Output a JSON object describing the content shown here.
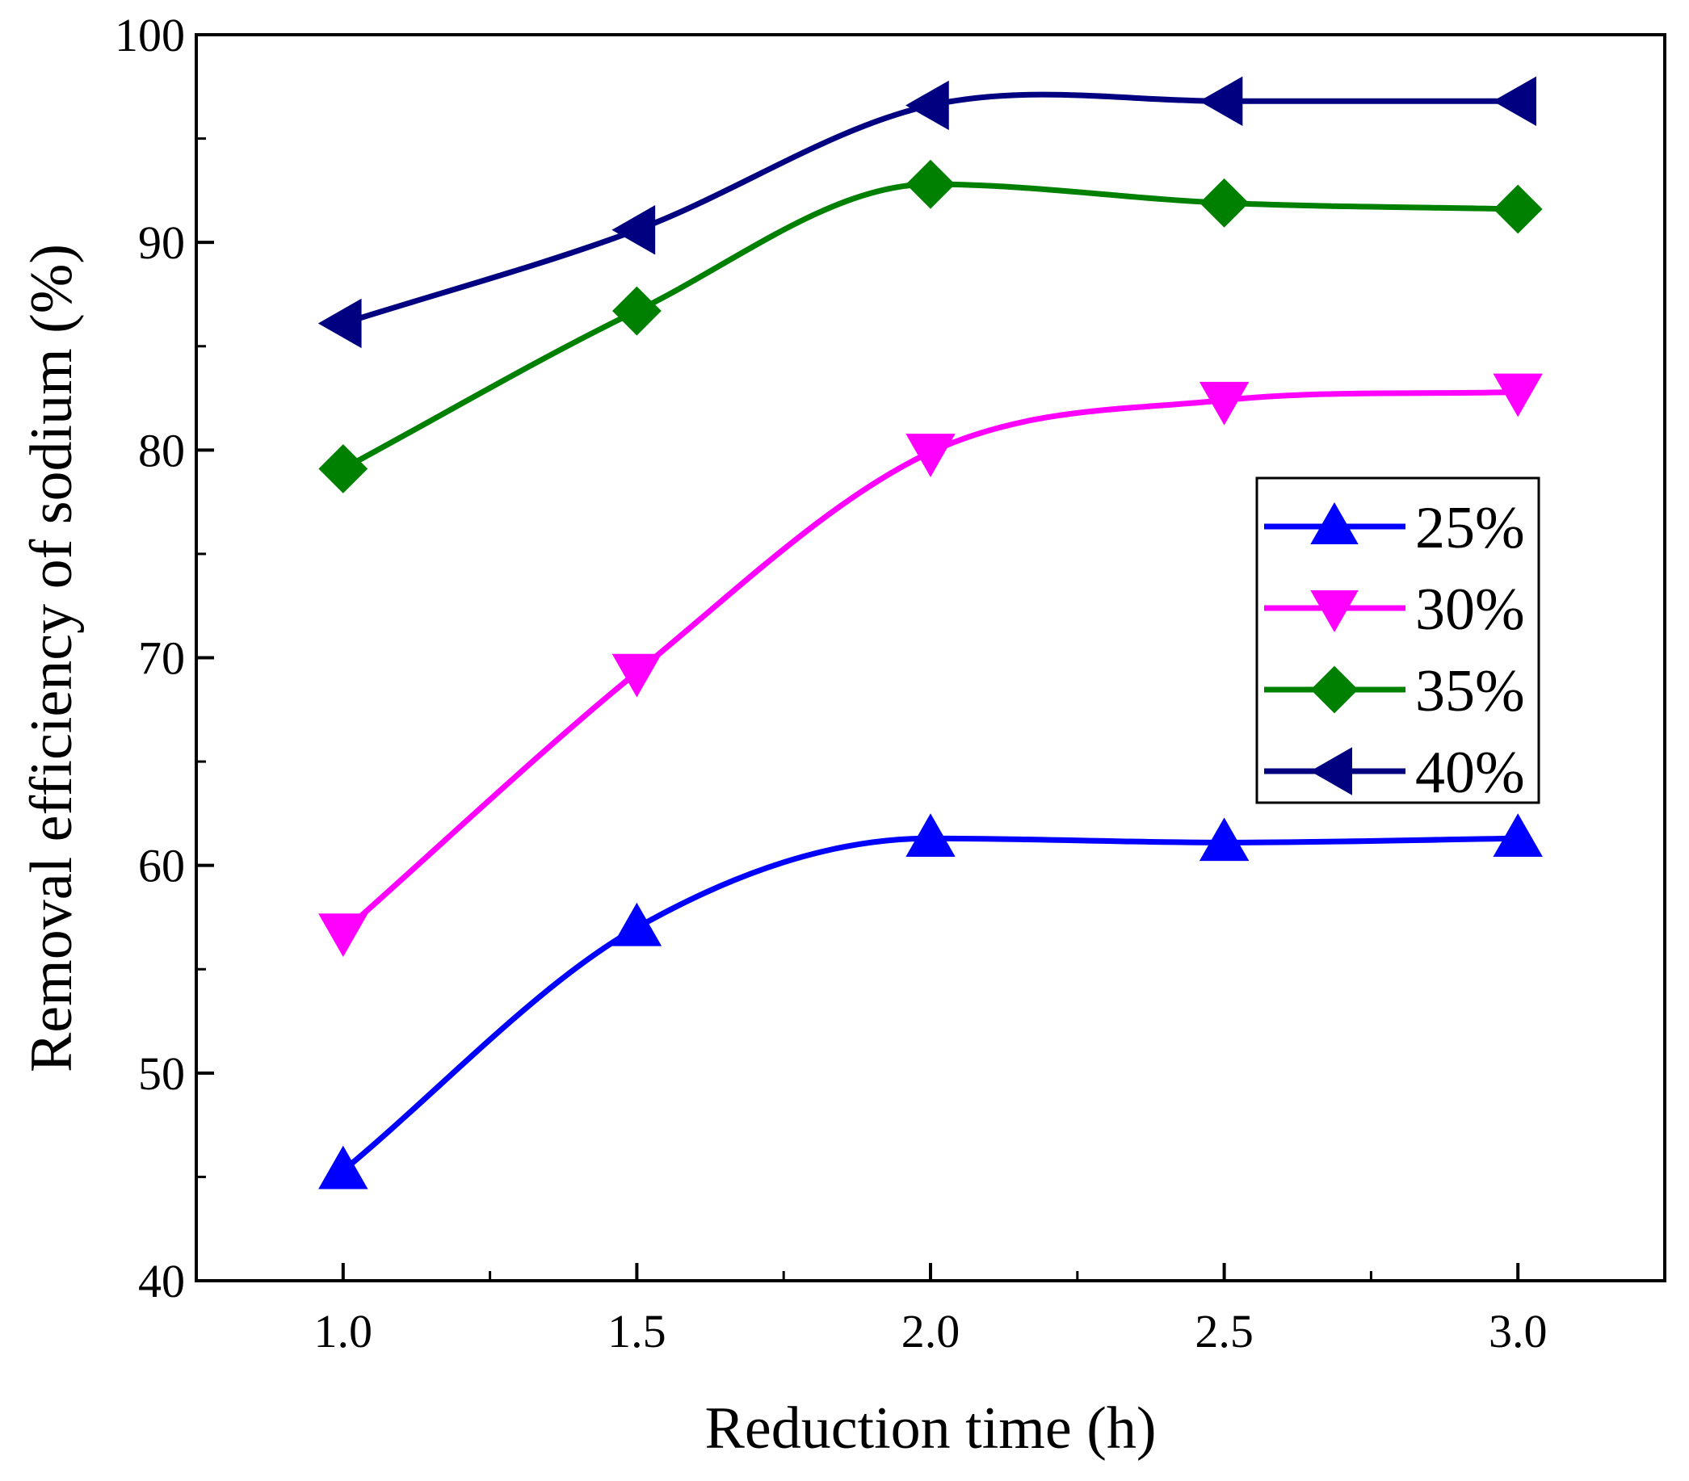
{
  "chart_data": {
    "type": "line",
    "xlabel": "Reduction time (h)",
    "ylabel": "Removal efficiency of sodium (%)",
    "xlim": [
      0.75,
      3.25
    ],
    "ylim": [
      40,
      100
    ],
    "x_ticks": [
      "1.0",
      "1.5",
      "2.0",
      "2.5",
      "3.0"
    ],
    "y_ticks": [
      "40",
      "50",
      "60",
      "70",
      "80",
      "90",
      "100"
    ],
    "grid": false,
    "legend_position": "right",
    "x": [
      1.0,
      1.5,
      2.0,
      2.5,
      3.0
    ],
    "series": [
      {
        "name": "25%",
        "color": "#0000ff",
        "marker": "triangle-up",
        "values": [
          45.3,
          57.0,
          61.3,
          61.1,
          61.3
        ]
      },
      {
        "name": "30%",
        "color": "#ff00ff",
        "marker": "triangle-down",
        "values": [
          56.8,
          69.3,
          79.9,
          82.4,
          82.8
        ]
      },
      {
        "name": "35%",
        "color": "#008000",
        "marker": "diamond",
        "values": [
          79.1,
          86.7,
          92.8,
          91.9,
          91.6
        ]
      },
      {
        "name": "40%",
        "color": "#000080",
        "marker": "triangle-left",
        "values": [
          86.1,
          90.6,
          96.6,
          96.8,
          96.8
        ]
      }
    ]
  }
}
